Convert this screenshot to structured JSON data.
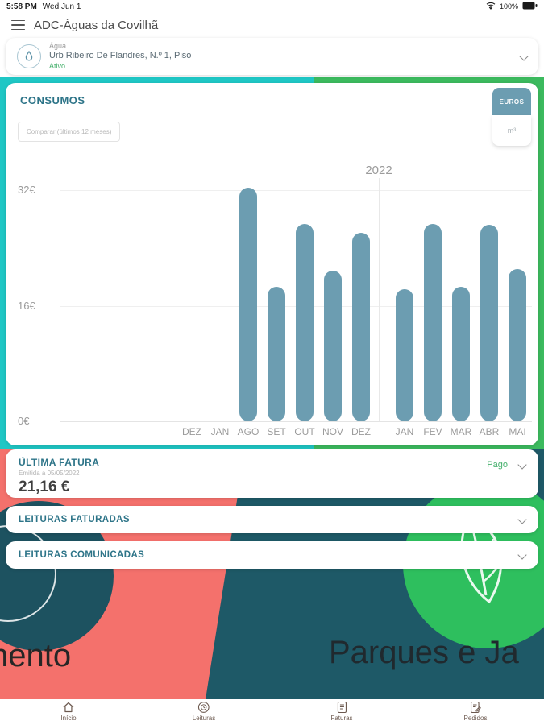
{
  "status_bar": {
    "time": "5:58 PM",
    "date": "Wed Jun 1",
    "battery": "100%"
  },
  "header": {
    "title": "ADC-Águas da Covilhã"
  },
  "account_selector": {
    "type_label": "Água",
    "address": "Urb Ribeiro De Flandres, N.º 1, Piso",
    "status": "Ativo"
  },
  "consumos": {
    "title": "CONSUMOS",
    "compare_button": "Comparar (últimos 12 meses)",
    "unit_selected": "EUROS",
    "unit_alt": "m³"
  },
  "chart_data": {
    "type": "bar",
    "title": "CONSUMOS",
    "unit": "EUR",
    "categories": [
      "DEZ",
      "JAN",
      "AGO",
      "SET",
      "OUT",
      "NOV",
      "DEZ",
      "JAN",
      "FEV",
      "MAR",
      "ABR",
      "MAI"
    ],
    "values": [
      null,
      null,
      32.3,
      18.6,
      27.3,
      20.9,
      26.1,
      18.3,
      27.3,
      18.6,
      27.2,
      21.1
    ],
    "yticks": [
      "32€",
      "16€",
      "0€"
    ],
    "ylim": [
      0,
      32
    ],
    "year_label": "2022",
    "year_divider_after_index": 6,
    "grid": "horizontal",
    "bar_color": "#6c9db1"
  },
  "ultima_fatura": {
    "title": "ÚLTIMA FATURA",
    "subtitle": "Emitida a 05/05/2022",
    "amount": "21,16 €",
    "status": "Pago"
  },
  "sections": [
    {
      "label": "LEITURAS FATURADAS"
    },
    {
      "label": "LEITURAS COMUNICADAS"
    }
  ],
  "background": {
    "left_text": "nento",
    "right_text": "Parques e Ja"
  },
  "tab_bar": {
    "items": [
      {
        "label": "Início"
      },
      {
        "label": "Leituras"
      },
      {
        "label": "Faturas"
      },
      {
        "label": "Pedidos"
      }
    ]
  },
  "colors": {
    "accent_teal": "#2d7488",
    "bar_slate": "#6c9db1",
    "cyan_tile": "#1fc7c5",
    "green_tile": "#3cba5e",
    "coral_tile": "#f4716c",
    "dark_teal_tile": "#1e5967",
    "green_circle": "#2ebf5e",
    "status_green": "#45b06c"
  }
}
